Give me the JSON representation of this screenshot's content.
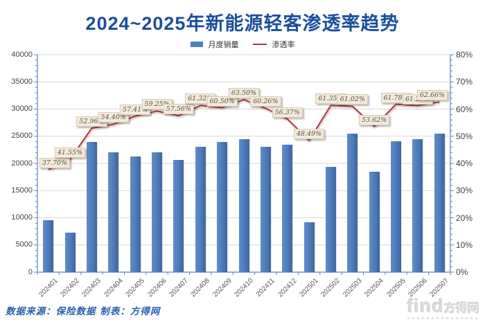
{
  "title": "2024~2025年新能源轻客渗透率趋势",
  "footer": {
    "source": "数据来源：保险数据 制表：方得网",
    "watermark": {
      "latin": "find",
      "cn": "方得网"
    }
  },
  "colors": {
    "title": "#1b4f9c",
    "bar": "#4e80bd",
    "bar_light": "#5f8ec7",
    "bar_dark": "#40649b",
    "line": "#a43b40",
    "grid": "#d9d9d9",
    "axis": "#5b83c0",
    "label_bg": "#f3ead9",
    "label_border": "#d8ccb6",
    "footer_text": "#2b61ae"
  },
  "chart_data": {
    "type": "bar+line combo",
    "title": "2024~2025年新能源轻客渗透率趋势",
    "categories": [
      "202401",
      "202402",
      "202403",
      "202404",
      "202405",
      "202406",
      "202407",
      "202408",
      "202409",
      "202410",
      "202411",
      "202412",
      "202501",
      "202502",
      "202503",
      "202504",
      "202505",
      "202506",
      "202507"
    ],
    "series": [
      {
        "name": "月度销量",
        "type": "bar",
        "axis": "left",
        "values": [
          9500,
          7300,
          24000,
          22000,
          21300,
          22100,
          20700,
          23000,
          24000,
          24500,
          23100,
          23400,
          9200,
          19300,
          25500,
          18500,
          24100,
          24400,
          25500
        ]
      },
      {
        "name": "渗透率",
        "type": "line",
        "axis": "right",
        "values": [
          37.7,
          41.55,
          52.96,
          54.4,
          57.41,
          59.25,
          57.56,
          61.32,
          60.5,
          63.5,
          60.26,
          56.37,
          48.49,
          61.35,
          61.02,
          53.62,
          61.78,
          61.27,
          62.66
        ],
        "labels": [
          "37.70%",
          "41.55%",
          "52.96%",
          "54.40%",
          "57.41%",
          "59.25%",
          "57.56%",
          "61.32%",
          "60.50%",
          "63.50%",
          "60.26%",
          "56.37%",
          "48.49%",
          "61.35%",
          "61.02%",
          "53.62%",
          "61.78%",
          "61.27%",
          "62.66%"
        ]
      }
    ],
    "left_axis": {
      "min": 0,
      "max": 40000,
      "step": 5000,
      "ticks": [
        "40000",
        "35000",
        "30000",
        "25000",
        "20000",
        "15000",
        "10000",
        "5000",
        "0"
      ]
    },
    "right_axis": {
      "min": 0,
      "max": 80,
      "step": 10,
      "ticks": [
        "80%",
        "70%",
        "60%",
        "50%",
        "40%",
        "30%",
        "20%",
        "10%",
        "0%"
      ]
    },
    "grid": "horizontal",
    "legend_position": "top-center"
  }
}
